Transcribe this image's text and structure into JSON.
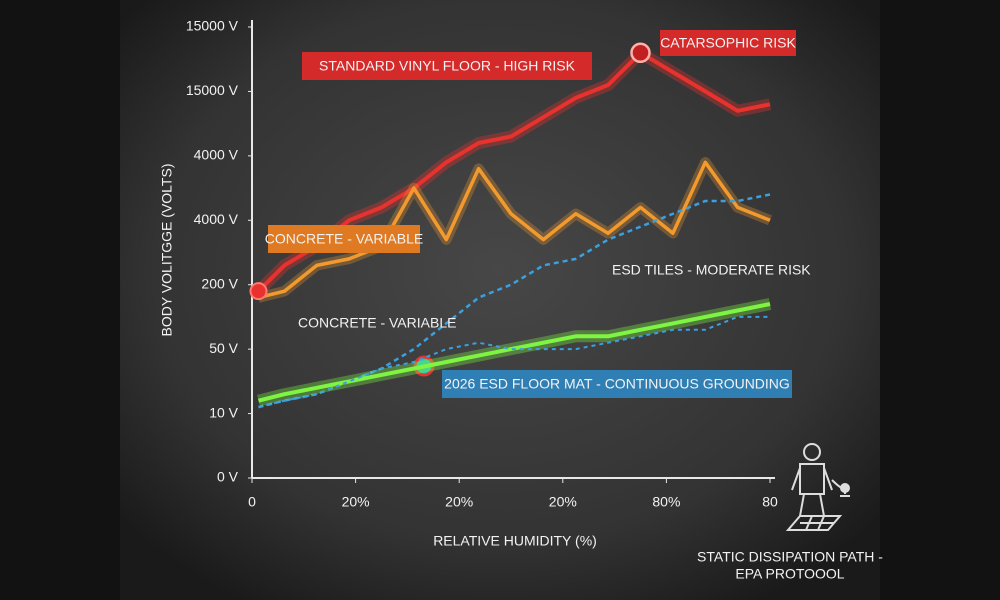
{
  "chart_data": {
    "type": "line",
    "y_label": "BODY VOLITGGE (VOLTS)",
    "x_label": "RELATIVE HUMIDITY (%)",
    "x": [
      1,
      5,
      10,
      15,
      20,
      25,
      30,
      35,
      40,
      45,
      50,
      55,
      60,
      65,
      70,
      75,
      80
    ],
    "xlim": [
      0,
      80
    ],
    "xticks": [
      0,
      {
        "value": 16,
        "label": "20%"
      },
      {
        "value": 32,
        "label": "20%"
      },
      {
        "value": 48,
        "label": "20%"
      },
      {
        "value": 64,
        "label": "80%"
      },
      80
    ],
    "ylim": [
      0,
      7
    ],
    "yticks": [
      {
        "value": 0,
        "label": "0 V"
      },
      {
        "value": 1,
        "label": "10 V"
      },
      {
        "value": 2,
        "label": "50 V"
      },
      {
        "value": 3,
        "label": "200 V"
      },
      {
        "value": 4,
        "label": "4000 V"
      },
      {
        "value": 5,
        "label": "4000 V"
      },
      {
        "value": 6,
        "label": "15000 V"
      },
      {
        "value": 7,
        "label": "15000 V"
      }
    ],
    "series": [
      {
        "name": "STANDARD VINYL FLOOR - HIGH RISK",
        "color": "#e8322e",
        "values": [
          2.9,
          3.3,
          3.6,
          4.0,
          4.2,
          4.5,
          4.9,
          5.2,
          5.3,
          5.6,
          5.9,
          6.1,
          6.6,
          6.3,
          6.0,
          5.7,
          5.8
        ]
      },
      {
        "name": "CONCRETE - VARIABLE",
        "color": "#f39a2e",
        "values": [
          2.8,
          2.9,
          3.3,
          3.4,
          3.6,
          4.5,
          3.7,
          4.8,
          4.1,
          3.7,
          4.1,
          3.8,
          4.2,
          3.8,
          4.9,
          4.2,
          4.0
        ]
      },
      {
        "name": "ESD TILES - MODERATE RISK",
        "color": "#3aa0e0",
        "values": [
          1.1,
          1.2,
          1.3,
          1.5,
          1.7,
          2.0,
          2.4,
          2.8,
          3.0,
          3.3,
          3.4,
          3.7,
          3.9,
          4.1,
          4.3,
          4.3,
          4.4
        ]
      },
      {
        "name": "2026 ESD FLOOR MAT - CONTINUOUS GROUNDING",
        "color": "#7ef542",
        "values": [
          1.2,
          1.3,
          1.4,
          1.5,
          1.6,
          1.7,
          1.8,
          1.9,
          2.0,
          2.1,
          2.2,
          2.2,
          2.3,
          2.4,
          2.5,
          2.6,
          2.7
        ]
      },
      {
        "name": "CONCRETE - VARIABLE",
        "color": "#3aa0e0",
        "values": [
          1.1,
          1.2,
          1.3,
          1.5,
          1.7,
          1.8,
          2.0,
          2.1,
          2.0,
          2.0,
          2.0,
          2.1,
          2.2,
          2.3,
          2.3,
          2.5,
          2.5
        ]
      }
    ],
    "annotations": [
      "CATARSOPHIC RISK",
      "STATIC DISSIPATION PATH -",
      "EPA PROTOOOL"
    ]
  }
}
